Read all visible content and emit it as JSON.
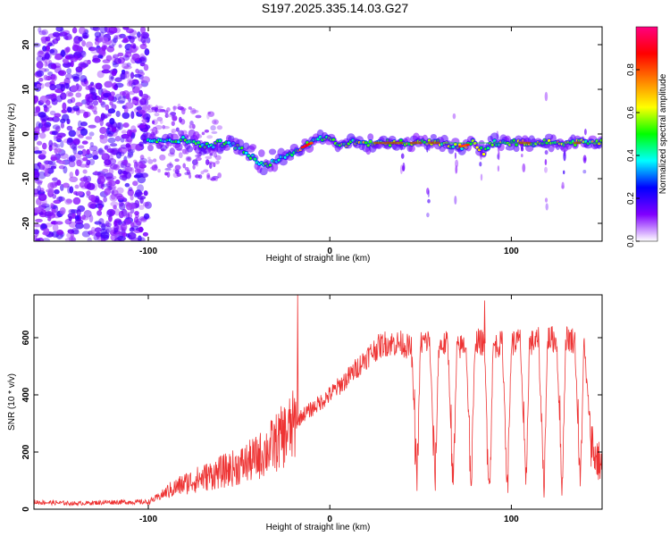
{
  "title": "S197.2025.335.14.03.G27",
  "chart_data": [
    {
      "type": "heatmap",
      "xlabel": "Height of straight line (km)",
      "ylabel": "Frequency (Hz)",
      "xlim": [
        -163,
        150
      ],
      "ylim": [
        -24,
        24
      ],
      "xticks": [
        -100,
        0,
        100
      ],
      "yticks": [
        -20,
        -10,
        0,
        10,
        20
      ],
      "ridge": {
        "description": "frequency of maximum spectral amplitude vs height",
        "x": [
          -100,
          -90,
          -80,
          -70,
          -60,
          -50,
          -40,
          -35,
          -30,
          -20,
          -10,
          -5,
          0,
          5,
          10,
          20,
          30,
          40,
          50,
          60,
          70,
          80,
          85,
          90,
          100,
          110,
          120,
          130,
          140,
          150
        ],
        "y": [
          -1,
          -2,
          -1,
          -3,
          -2,
          -3,
          -6,
          -7,
          -6,
          -4,
          -2,
          -1,
          -1,
          -3,
          -2,
          -2,
          -2,
          -2,
          -2,
          -2,
          -3,
          -2,
          -4,
          -2,
          -2,
          -2,
          -2,
          -2,
          -2,
          -2
        ]
      },
      "colorbar": {
        "label": "Normalized spectral amplitude",
        "range": [
          0,
          1
        ],
        "ticks": [
          "0.0",
          "0.2",
          "0.4",
          "0.6",
          "0.8"
        ],
        "tick_values": [
          0,
          0.2,
          0.4,
          0.6,
          0.8
        ],
        "colormap": [
          "#ffffff",
          "#8000ff",
          "#0000ff",
          "#00ffff",
          "#00ff00",
          "#ffff00",
          "#ff8000",
          "#ff0000",
          "#ff0080"
        ]
      }
    },
    {
      "type": "line",
      "xlabel": "Height of straight line (km)",
      "ylabel": "SNR (10 * v/v)",
      "xlim": [
        -163,
        150
      ],
      "ylim": [
        0,
        750
      ],
      "xticks": [
        -100,
        0,
        100
      ],
      "yticks": [
        0,
        200,
        400,
        600
      ],
      "color": "#ee3333",
      "series": [
        {
          "name": "SNR",
          "x": [
            -163,
            -140,
            -120,
            -100,
            -95,
            -90,
            -80,
            -70,
            -60,
            -50,
            -40,
            -30,
            -20,
            -15,
            -10,
            0,
            5,
            10,
            20,
            25,
            30,
            40,
            45,
            48,
            50,
            55,
            58,
            60,
            65,
            68,
            70,
            75,
            78,
            80,
            85,
            88,
            90,
            95,
            98,
            100,
            105,
            108,
            110,
            115,
            118,
            120,
            125,
            128,
            130,
            135,
            138,
            140,
            142,
            145,
            150
          ],
          "y": [
            25,
            20,
            25,
            25,
            40,
            60,
            90,
            110,
            130,
            150,
            180,
            230,
            290,
            330,
            350,
            400,
            430,
            460,
            530,
            560,
            580,
            580,
            560,
            100,
            580,
            590,
            80,
            570,
            580,
            70,
            560,
            580,
            60,
            590,
            580,
            60,
            570,
            580,
            70,
            580,
            590,
            60,
            580,
            590,
            60,
            600,
            590,
            60,
            600,
            590,
            70,
            580,
            400,
            200,
            150
          ]
        }
      ],
      "spikes": {
        "x": [
          -18,
          85
        ],
        "y": [
          750,
          730
        ]
      }
    }
  ]
}
